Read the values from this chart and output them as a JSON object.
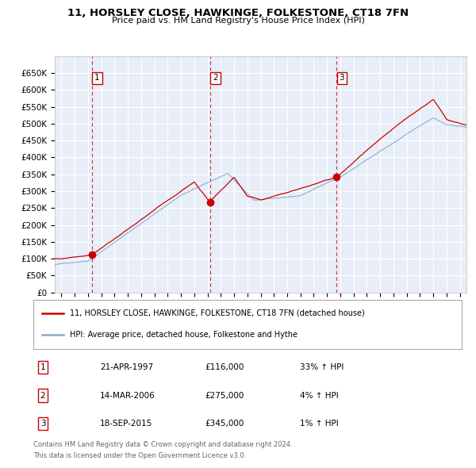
{
  "title": "11, HORSLEY CLOSE, HAWKINGE, FOLKESTONE, CT18 7FN",
  "subtitle": "Price paid vs. HM Land Registry's House Price Index (HPI)",
  "legend_label_red": "11, HORSLEY CLOSE, HAWKINGE, FOLKESTONE, CT18 7FN (detached house)",
  "legend_label_blue": "HPI: Average price, detached house, Folkestone and Hythe",
  "transactions": [
    {
      "num": 1,
      "date": "21-APR-1997",
      "price": 116000,
      "year": 1997.3,
      "pct": "33%",
      "dir": "↑"
    },
    {
      "num": 2,
      "date": "14-MAR-2006",
      "price": 275000,
      "year": 2006.2,
      "pct": "4%",
      "dir": "↑"
    },
    {
      "num": 3,
      "date": "18-SEP-2015",
      "price": 345000,
      "year": 2015.71,
      "pct": "1%",
      "dir": "↑"
    }
  ],
  "footnote1": "Contains HM Land Registry data © Crown copyright and database right 2024.",
  "footnote2": "This data is licensed under the Open Government Licence v3.0.",
  "xlim": [
    1994.5,
    2025.5
  ],
  "ylim": [
    0,
    700000
  ],
  "yticks": [
    0,
    50000,
    100000,
    150000,
    200000,
    250000,
    300000,
    350000,
    400000,
    450000,
    500000,
    550000,
    600000,
    650000
  ],
  "ytick_labels": [
    "£0",
    "£50K",
    "£100K",
    "£150K",
    "£200K",
    "£250K",
    "£300K",
    "£350K",
    "£400K",
    "£450K",
    "£500K",
    "£550K",
    "£600K",
    "£650K"
  ],
  "xticks": [
    1995,
    1996,
    1997,
    1998,
    1999,
    2000,
    2001,
    2002,
    2003,
    2004,
    2005,
    2006,
    2007,
    2008,
    2009,
    2010,
    2011,
    2012,
    2013,
    2014,
    2015,
    2016,
    2017,
    2018,
    2019,
    2020,
    2021,
    2022,
    2023,
    2024,
    2025
  ],
  "bg_color": "#e8eef8",
  "grid_color": "#ffffff",
  "red_color": "#cc0000",
  "blue_color": "#88aacc"
}
